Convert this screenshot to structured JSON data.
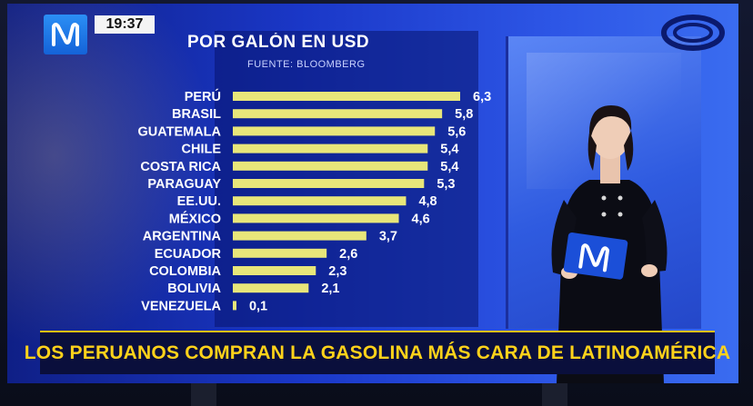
{
  "broadcast": {
    "clock": "19:37",
    "headline": "LOS PERUANOS COMPRAN LA GASOLINA MÁS CARA DE LATINOAMÉRICA"
  },
  "colors": {
    "bar": "#e8e67a",
    "headline": "#ffd21a",
    "background": "#1a37c7"
  },
  "icons": [
    "channel-n-logo-icon",
    "ring-logo-icon",
    "tablet-n-logo-icon"
  ],
  "chart_data": {
    "type": "bar",
    "orientation": "horizontal",
    "title": "POR GALÓN EN USD",
    "subtitle": "FUENTE: BLOOMBERG",
    "categories": [
      "PERÚ",
      "BRASIL",
      "GUATEMALA",
      "CHILE",
      "COSTA RICA",
      "PARAGUAY",
      "EE.UU.",
      "MÉXICO",
      "ARGENTINA",
      "ECUADOR",
      "COLOMBIA",
      "BOLIVIA",
      "VENEZUELA"
    ],
    "values": [
      6.3,
      5.8,
      5.6,
      5.4,
      5.4,
      5.3,
      4.8,
      4.6,
      3.7,
      2.6,
      2.3,
      2.1,
      0.1
    ],
    "value_labels": [
      "6,3",
      "5,8",
      "5,6",
      "5,4",
      "5,4",
      "5,3",
      "4,8",
      "4,6",
      "3,7",
      "2,6",
      "2,3",
      "2,1",
      "0,1"
    ],
    "xlim": [
      0,
      6.3
    ],
    "grid": false,
    "legend": "none"
  }
}
